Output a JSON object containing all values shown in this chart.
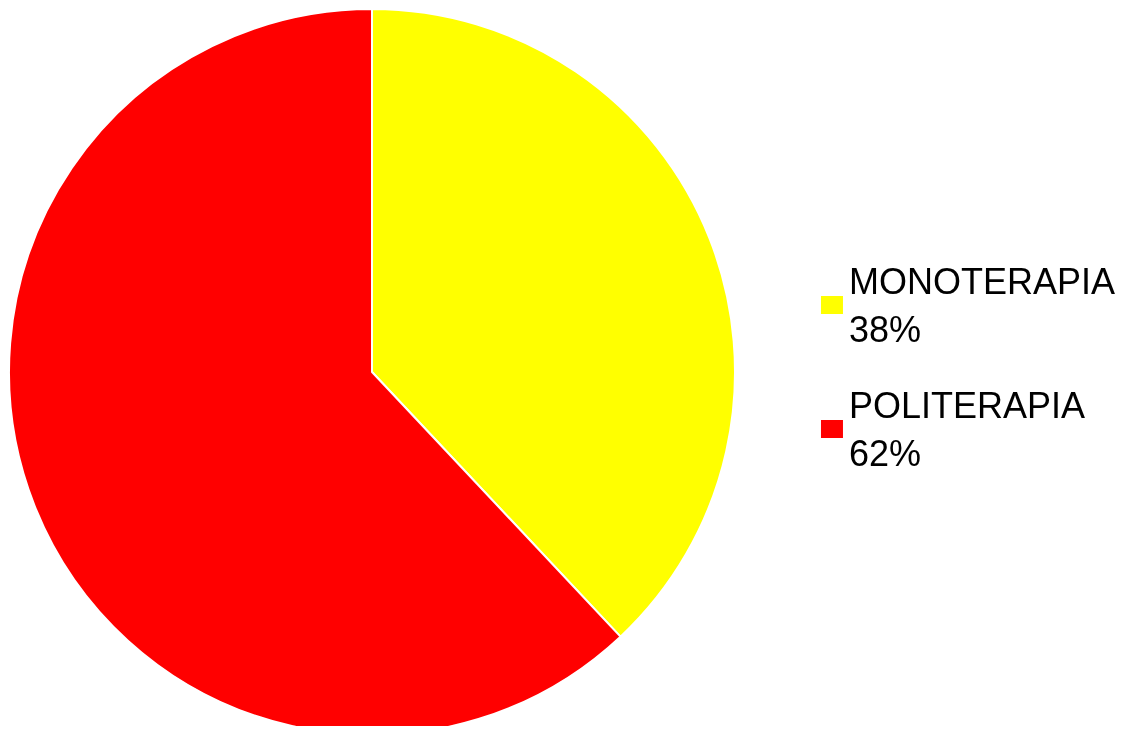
{
  "chart_data": {
    "type": "pie",
    "categories": [
      "MONOTERAPIA",
      "POLITERAPIA"
    ],
    "values": [
      38,
      62
    ],
    "value_labels": [
      "38%",
      "62%"
    ],
    "colors": [
      "#ffff00",
      "#ff0000"
    ],
    "legend": "right"
  }
}
